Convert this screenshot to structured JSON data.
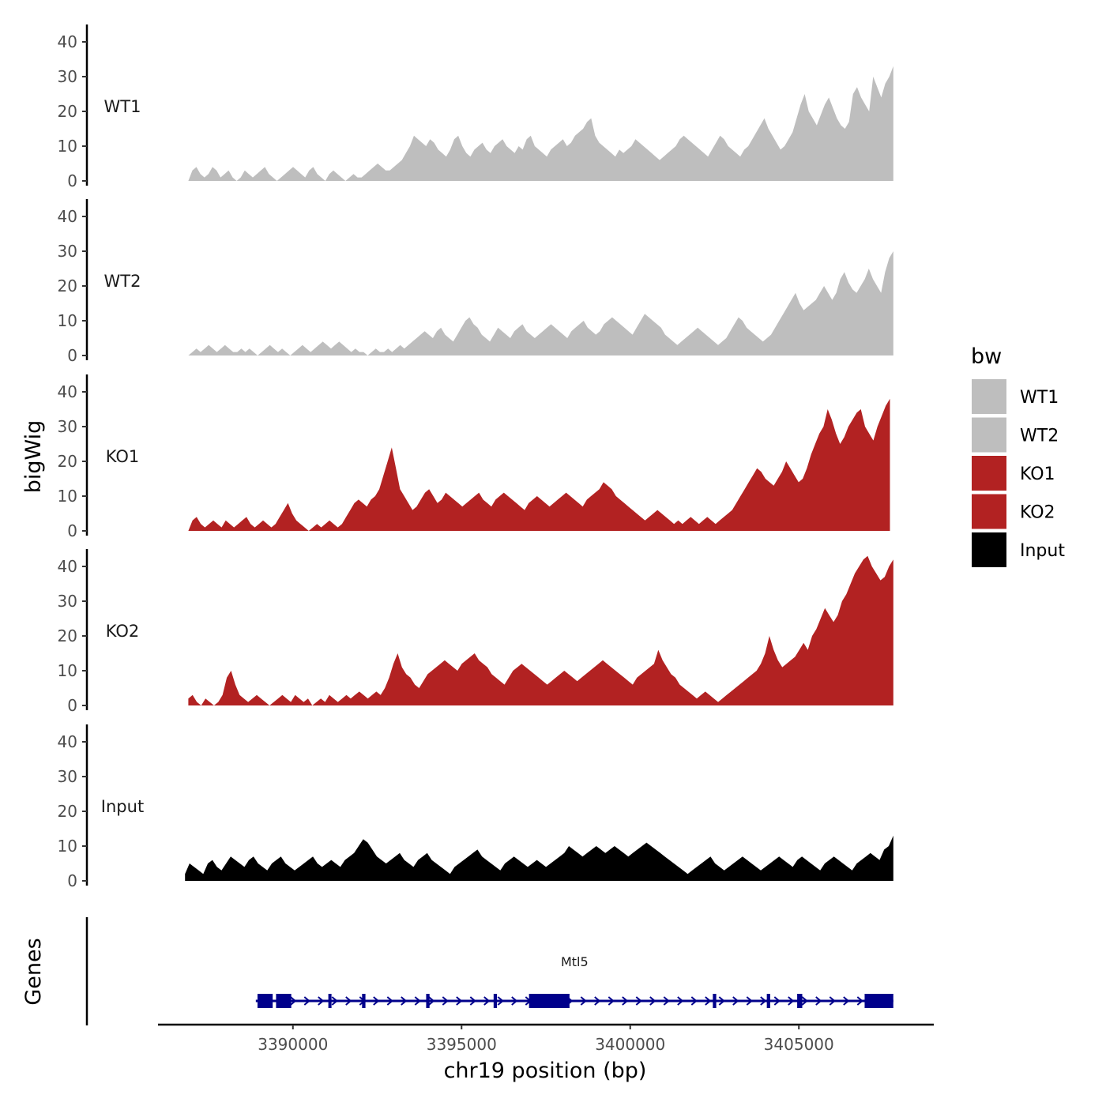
{
  "chart_data": {
    "type": "area",
    "y_axis_title": "bigWig",
    "x_axis_title": "chr19 position (bp)",
    "genes_axis_title": "Genes",
    "x_range": [
      3386000,
      3409000
    ],
    "data_range": [
      3386900,
      3407800
    ],
    "x_ticks": [
      {
        "value": 3390000,
        "label": "3390000"
      },
      {
        "value": 3395000,
        "label": "3395000"
      },
      {
        "value": 3400000,
        "label": "3400000"
      },
      {
        "value": 3405000,
        "label": "3405000"
      }
    ],
    "y_range": [
      0,
      45
    ],
    "y_ticks": [
      {
        "value": 0,
        "label": "0"
      },
      {
        "value": 10,
        "label": "10"
      },
      {
        "value": 20,
        "label": "20"
      },
      {
        "value": 30,
        "label": "30"
      },
      {
        "value": 40,
        "label": "40"
      }
    ],
    "series": [
      {
        "name": "WT1",
        "color": "#bebebe",
        "x_start": 3386900,
        "x_end": 3407800,
        "values": [
          0,
          3,
          4,
          2,
          1,
          2,
          4,
          3,
          1,
          2,
          3,
          1,
          0,
          1,
          3,
          2,
          1,
          2,
          3,
          4,
          2,
          1,
          0,
          1,
          2,
          3,
          4,
          3,
          2,
          1,
          3,
          4,
          2,
          1,
          0,
          2,
          3,
          2,
          1,
          0,
          1,
          2,
          1,
          1,
          2,
          3,
          4,
          5,
          4,
          3,
          3,
          4,
          5,
          6,
          8,
          10,
          13,
          12,
          11,
          10,
          12,
          11,
          9,
          8,
          7,
          9,
          12,
          13,
          10,
          8,
          7,
          9,
          10,
          11,
          9,
          8,
          10,
          11,
          12,
          10,
          9,
          8,
          10,
          9,
          12,
          13,
          10,
          9,
          8,
          7,
          9,
          10,
          11,
          12,
          10,
          11,
          13,
          14,
          15,
          17,
          18,
          13,
          11,
          10,
          9,
          8,
          7,
          9,
          8,
          9,
          10,
          12,
          11,
          10,
          9,
          8,
          7,
          6,
          7,
          8,
          9,
          10,
          12,
          13,
          12,
          11,
          10,
          9,
          8,
          7,
          9,
          11,
          13,
          12,
          10,
          9,
          8,
          7,
          9,
          10,
          12,
          14,
          16,
          18,
          15,
          13,
          11,
          9,
          10,
          12,
          14,
          18,
          22,
          25,
          20,
          18,
          16,
          19,
          22,
          24,
          21,
          18,
          16,
          15,
          17,
          25,
          27,
          24,
          22,
          20,
          30,
          27,
          24,
          28,
          30,
          33
        ]
      },
      {
        "name": "WT2",
        "color": "#bebebe",
        "x_start": 3386900,
        "x_end": 3407800,
        "values": [
          0,
          1,
          2,
          1,
          2,
          3,
          2,
          1,
          2,
          3,
          2,
          1,
          1,
          2,
          1,
          2,
          1,
          0,
          1,
          2,
          3,
          2,
          1,
          2,
          1,
          0,
          1,
          2,
          3,
          2,
          1,
          2,
          3,
          4,
          3,
          2,
          3,
          4,
          3,
          2,
          1,
          2,
          1,
          1,
          0,
          1,
          2,
          1,
          1,
          2,
          1,
          2,
          3,
          2,
          3,
          4,
          5,
          6,
          7,
          6,
          5,
          7,
          8,
          6,
          5,
          4,
          6,
          8,
          10,
          11,
          9,
          8,
          6,
          5,
          4,
          6,
          8,
          7,
          6,
          5,
          7,
          8,
          9,
          7,
          6,
          5,
          6,
          7,
          8,
          9,
          8,
          7,
          6,
          5,
          7,
          8,
          9,
          10,
          8,
          7,
          6,
          7,
          9,
          10,
          11,
          10,
          9,
          8,
          7,
          6,
          8,
          10,
          12,
          11,
          10,
          9,
          8,
          6,
          5,
          4,
          3,
          4,
          5,
          6,
          7,
          8,
          7,
          6,
          5,
          4,
          3,
          4,
          5,
          7,
          9,
          11,
          10,
          8,
          7,
          6,
          5,
          4,
          5,
          6,
          8,
          10,
          12,
          14,
          16,
          18,
          15,
          13,
          14,
          15,
          16,
          18,
          20,
          18,
          16,
          18,
          22,
          24,
          21,
          19,
          18,
          20,
          22,
          25,
          22,
          20,
          18,
          24,
          28,
          30
        ]
      },
      {
        "name": "KO1",
        "color": "#b22222",
        "x_start": 3386900,
        "x_end": 3407700,
        "values": [
          0,
          3,
          4,
          2,
          1,
          2,
          3,
          2,
          1,
          3,
          2,
          1,
          2,
          3,
          4,
          2,
          1,
          2,
          3,
          2,
          1,
          2,
          4,
          6,
          8,
          5,
          3,
          2,
          1,
          0,
          1,
          2,
          1,
          2,
          3,
          2,
          1,
          2,
          4,
          6,
          8,
          9,
          8,
          7,
          9,
          10,
          12,
          16,
          20,
          24,
          18,
          12,
          10,
          8,
          6,
          7,
          9,
          11,
          12,
          10,
          8,
          9,
          11,
          10,
          9,
          8,
          7,
          8,
          9,
          10,
          11,
          9,
          8,
          7,
          9,
          10,
          11,
          10,
          9,
          8,
          7,
          6,
          8,
          9,
          10,
          9,
          8,
          7,
          8,
          9,
          10,
          11,
          10,
          9,
          8,
          7,
          9,
          10,
          11,
          12,
          14,
          13,
          12,
          10,
          9,
          8,
          7,
          6,
          5,
          4,
          3,
          4,
          5,
          6,
          5,
          4,
          3,
          2,
          3,
          2,
          3,
          4,
          3,
          2,
          3,
          4,
          3,
          2,
          3,
          4,
          5,
          6,
          8,
          10,
          12,
          14,
          16,
          18,
          17,
          15,
          14,
          13,
          15,
          17,
          20,
          18,
          16,
          14,
          15,
          18,
          22,
          25,
          28,
          30,
          35,
          32,
          28,
          25,
          27,
          30,
          32,
          34,
          35,
          30,
          28,
          26,
          30,
          33,
          36,
          38
        ]
      },
      {
        "name": "KO2",
        "color": "#b22222",
        "x_start": 3386900,
        "x_end": 3407800,
        "values": [
          2,
          3,
          1,
          0,
          2,
          1,
          0,
          1,
          3,
          8,
          10,
          6,
          3,
          2,
          1,
          2,
          3,
          2,
          1,
          0,
          1,
          2,
          3,
          2,
          1,
          3,
          2,
          1,
          2,
          0,
          1,
          2,
          1,
          3,
          2,
          1,
          2,
          3,
          2,
          3,
          4,
          3,
          2,
          3,
          4,
          3,
          5,
          8,
          12,
          15,
          11,
          9,
          8,
          6,
          5,
          7,
          9,
          10,
          11,
          12,
          13,
          12,
          11,
          10,
          12,
          13,
          14,
          15,
          13,
          12,
          11,
          9,
          8,
          7,
          6,
          8,
          10,
          11,
          12,
          11,
          10,
          9,
          8,
          7,
          6,
          7,
          8,
          9,
          10,
          9,
          8,
          7,
          8,
          9,
          10,
          11,
          12,
          13,
          12,
          11,
          10,
          9,
          8,
          7,
          6,
          8,
          9,
          10,
          11,
          12,
          16,
          13,
          11,
          9,
          8,
          6,
          5,
          4,
          3,
          2,
          3,
          4,
          3,
          2,
          1,
          2,
          3,
          4,
          5,
          6,
          7,
          8,
          9,
          10,
          12,
          15,
          20,
          16,
          13,
          11,
          12,
          13,
          14,
          16,
          18,
          16,
          20,
          22,
          25,
          28,
          26,
          24,
          26,
          30,
          32,
          35,
          38,
          40,
          42,
          43,
          40,
          38,
          36,
          37,
          40,
          42
        ]
      },
      {
        "name": "Input",
        "color": "#000000",
        "x_start": 3386800,
        "x_end": 3407800,
        "values": [
          2,
          5,
          4,
          3,
          2,
          5,
          6,
          4,
          3,
          5,
          7,
          6,
          5,
          4,
          6,
          7,
          5,
          4,
          3,
          5,
          6,
          7,
          5,
          4,
          3,
          4,
          5,
          6,
          7,
          5,
          4,
          5,
          6,
          5,
          4,
          6,
          7,
          8,
          10,
          12,
          11,
          9,
          7,
          6,
          5,
          6,
          7,
          8,
          6,
          5,
          4,
          6,
          7,
          8,
          6,
          5,
          4,
          3,
          2,
          4,
          5,
          6,
          7,
          8,
          9,
          7,
          6,
          5,
          4,
          3,
          5,
          6,
          7,
          6,
          5,
          4,
          5,
          6,
          5,
          4,
          5,
          6,
          7,
          8,
          10,
          9,
          8,
          7,
          8,
          9,
          10,
          9,
          8,
          9,
          10,
          9,
          8,
          7,
          8,
          9,
          10,
          11,
          10,
          9,
          8,
          7,
          6,
          5,
          4,
          3,
          2,
          3,
          4,
          5,
          6,
          7,
          5,
          4,
          3,
          4,
          5,
          6,
          7,
          6,
          5,
          4,
          3,
          4,
          5,
          6,
          7,
          6,
          5,
          4,
          6,
          7,
          6,
          5,
          4,
          3,
          5,
          6,
          7,
          6,
          5,
          4,
          3,
          5,
          6,
          7,
          8,
          7,
          6,
          9,
          10,
          13
        ]
      }
    ],
    "gene": {
      "name": "Mtl5",
      "color": "#00008b",
      "strand": "+",
      "start": 3388900,
      "end": 3407800,
      "exons": [
        {
          "start": 3388950,
          "end": 3389400
        },
        {
          "start": 3389500,
          "end": 3389950
        },
        {
          "start": 3391050,
          "end": 3391100
        },
        {
          "start": 3392050,
          "end": 3392150
        },
        {
          "start": 3393950,
          "end": 3394050
        },
        {
          "start": 3395950,
          "end": 3396050
        },
        {
          "start": 3397000,
          "end": 3398200
        },
        {
          "start": 3402450,
          "end": 3402550
        },
        {
          "start": 3404050,
          "end": 3404150
        },
        {
          "start": 3404950,
          "end": 3405100
        },
        {
          "start": 3406950,
          "end": 3407800
        }
      ]
    }
  },
  "legend": {
    "title": "bw",
    "items": [
      {
        "label": "WT1",
        "color": "#bebebe"
      },
      {
        "label": "WT2",
        "color": "#bebebe"
      },
      {
        "label": "KO1",
        "color": "#b22222"
      },
      {
        "label": "KO2",
        "color": "#b22222"
      },
      {
        "label": "Input",
        "color": "#000000"
      }
    ]
  }
}
